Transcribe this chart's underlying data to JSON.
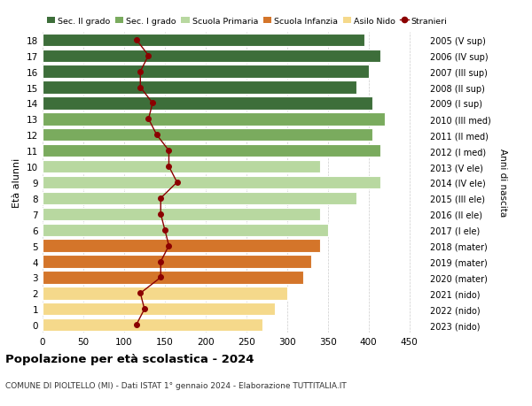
{
  "ages": [
    0,
    1,
    2,
    3,
    4,
    5,
    6,
    7,
    8,
    9,
    10,
    11,
    12,
    13,
    14,
    15,
    16,
    17,
    18
  ],
  "years": [
    "2023 (nido)",
    "2022 (nido)",
    "2021 (nido)",
    "2020 (mater)",
    "2019 (mater)",
    "2018 (mater)",
    "2017 (I ele)",
    "2016 (II ele)",
    "2015 (III ele)",
    "2014 (IV ele)",
    "2013 (V ele)",
    "2012 (I med)",
    "2011 (II med)",
    "2010 (III med)",
    "2009 (I sup)",
    "2008 (II sup)",
    "2007 (III sup)",
    "2006 (IV sup)",
    "2005 (V sup)"
  ],
  "bar_values": [
    270,
    285,
    300,
    320,
    330,
    340,
    350,
    340,
    385,
    415,
    340,
    415,
    405,
    420,
    405,
    385,
    400,
    415,
    395
  ],
  "stranieri": [
    115,
    125,
    120,
    145,
    145,
    155,
    150,
    145,
    145,
    165,
    155,
    155,
    140,
    130,
    135,
    120,
    120,
    130,
    115
  ],
  "category_colors": [
    "#f5d98b",
    "#f5d98b",
    "#f5d98b",
    "#d4752a",
    "#d4752a",
    "#d4752a",
    "#b8d8a0",
    "#b8d8a0",
    "#b8d8a0",
    "#b8d8a0",
    "#b8d8a0",
    "#7aab5e",
    "#7aab5e",
    "#7aab5e",
    "#3d6e3a",
    "#3d6e3a",
    "#3d6e3a",
    "#3d6e3a",
    "#3d6e3a"
  ],
  "stranieri_color": "#8b0000",
  "grid_color": "#cccccc",
  "title": "Popolazione per età scolastica - 2024",
  "subtitle": "COMUNE DI PIOLTELLO (MI) - Dati ISTAT 1° gennaio 2024 - Elaborazione TUTTITALIA.IT",
  "ylabel": "Età alunni",
  "right_ylabel": "Anni di nascita",
  "xlabel_vals": [
    0,
    50,
    100,
    150,
    200,
    250,
    300,
    350,
    400,
    450
  ],
  "xlim": [
    0,
    470
  ],
  "legend_labels": [
    "Sec. II grado",
    "Sec. I grado",
    "Scuola Primaria",
    "Scuola Infanzia",
    "Asilo Nido",
    "Stranieri"
  ],
  "legend_colors": [
    "#3d6e3a",
    "#7aab5e",
    "#b8d8a0",
    "#d4752a",
    "#f5d98b",
    "#8b0000"
  ],
  "bar_height": 0.8,
  "background_color": "#ffffff"
}
